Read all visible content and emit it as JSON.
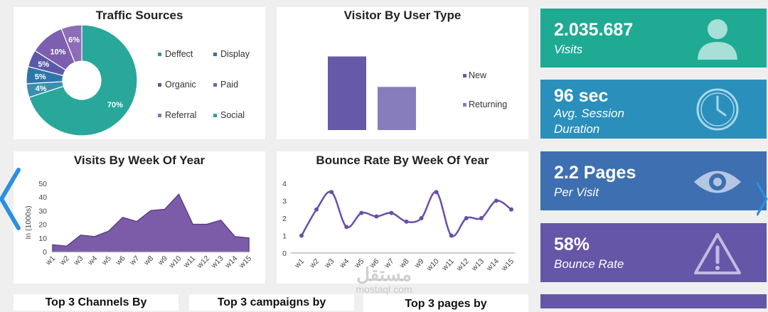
{
  "colors": {
    "teal": "#2aa79b",
    "blue": "#2b8db5",
    "steel": "#3f6fae",
    "purple": "#6a57a6",
    "purple_light": "#8c7fbf",
    "purple_area": "#7c5ca8"
  },
  "traffic_sources": {
    "title": "Traffic Sources",
    "legend": [
      "Deffect",
      "Display",
      "Organic",
      "Paid",
      "Referral",
      "Social"
    ],
    "chart_data": {
      "type": "pie",
      "labels": [
        "Social",
        "Deffect",
        "Display",
        "Organic",
        "Paid",
        "Referral"
      ],
      "values": [
        70,
        4,
        5,
        5,
        10,
        6
      ],
      "value_labels": [
        "70%",
        "4%",
        "5%",
        "5%",
        "10%",
        "6%"
      ],
      "colors": [
        "#2aa79b",
        "#3a8fb0",
        "#2f76a8",
        "#5b5aa8",
        "#7c5fae",
        "#8d6db5"
      ],
      "donut": true
    }
  },
  "visitor_type": {
    "title": "Visitor By User Type",
    "chart_data": {
      "type": "bar",
      "categories": [
        "New",
        "Returning"
      ],
      "values": [
        58,
        34
      ],
      "ylim": [
        0,
        70
      ],
      "colors": [
        "#665aa8",
        "#877dbd"
      ]
    },
    "legend": [
      "New",
      "Returning"
    ]
  },
  "visits_week": {
    "title": "Visits By Week Of Year",
    "ylabel": "In (1000s)",
    "chart_data": {
      "type": "area",
      "categories": [
        "w1",
        "w2",
        "w3",
        "w4",
        "w5",
        "w6",
        "w7",
        "w8",
        "w9",
        "w10",
        "w11",
        "w12",
        "w13",
        "w14",
        "w15"
      ],
      "values": [
        5,
        4,
        12,
        11,
        15,
        25,
        22,
        30,
        31,
        42,
        20,
        20,
        23,
        11,
        10
      ],
      "ylim": [
        0,
        50
      ],
      "yticks": [
        "0",
        "10",
        "20",
        "30",
        "40",
        "50"
      ]
    }
  },
  "bounce_week": {
    "title": "Bounce Rate By Week Of Year",
    "chart_data": {
      "type": "line",
      "categories": [
        "w1",
        "w2",
        "w3",
        "w4",
        "w5",
        "w6",
        "w7",
        "w8",
        "w9",
        "w10",
        "w11",
        "w12",
        "w13",
        "w14",
        "w15"
      ],
      "values": [
        1,
        2.5,
        3.5,
        1.5,
        2.3,
        2.1,
        2.3,
        1.8,
        2,
        3.5,
        1,
        2,
        2,
        3,
        2.5
      ],
      "ylim": [
        0,
        4
      ],
      "yticks": [
        "0",
        "1",
        "2",
        "3",
        "4"
      ]
    }
  },
  "kpis": [
    {
      "value": "2.035.687",
      "label_lines": [
        "Visits"
      ],
      "icon": "user-icon",
      "color": "#1faa94"
    },
    {
      "value": "96 sec",
      "label_lines": [
        "Avg. Session",
        "Duration"
      ],
      "icon": "clock-icon",
      "color": "#2a8fbb"
    },
    {
      "value": "2.2 Pages",
      "label_lines": [
        "Per Visit"
      ],
      "icon": "eye-icon",
      "color": "#3e6fb0"
    },
    {
      "value": "58%",
      "label_lines": [
        "Bounce Rate"
      ],
      "icon": "warning-icon",
      "color": "#6656a8"
    }
  ],
  "bottom_titles": [
    "Top 3 Channels By",
    "Top 3 campaigns by",
    "Top 3 pages by"
  ],
  "watermark": {
    "arabic": "مستقل",
    "latin": "mostaql.com"
  }
}
